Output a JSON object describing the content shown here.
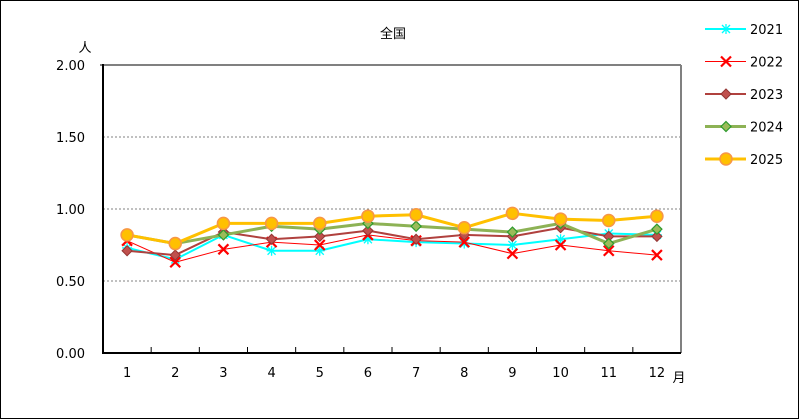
{
  "chart_data": {
    "type": "line",
    "title": "全国",
    "xlabel": "月",
    "ylabel": "人",
    "categories": [
      "1",
      "2",
      "3",
      "4",
      "5",
      "6",
      "7",
      "8",
      "9",
      "10",
      "11",
      "12"
    ],
    "yticks": [
      "0.00",
      "0.50",
      "1.00",
      "1.50",
      "2.00"
    ],
    "ylim": [
      0,
      2.0
    ],
    "grid": "horizontal dashed at 0.50, 1.00, 1.50",
    "legend_position": "right",
    "series": [
      {
        "name": "2021",
        "color": "#00FFFF",
        "marker": "asterisk",
        "width": 2,
        "values": [
          0.73,
          0.65,
          0.82,
          0.71,
          0.71,
          0.79,
          0.77,
          0.76,
          0.75,
          0.79,
          0.83,
          0.82
        ]
      },
      {
        "name": "2022",
        "color": "#FF0000",
        "marker": "x",
        "width": 1,
        "values": [
          0.78,
          0.63,
          0.72,
          0.77,
          0.75,
          0.82,
          0.78,
          0.77,
          0.69,
          0.75,
          0.71,
          0.68
        ]
      },
      {
        "name": "2023",
        "color": "#B0413E",
        "marker": "diamond",
        "width": 2,
        "values": [
          0.71,
          0.68,
          0.84,
          0.79,
          0.81,
          0.85,
          0.79,
          0.82,
          0.81,
          0.87,
          0.81,
          0.81
        ]
      },
      {
        "name": "2024",
        "color": "#8DB255",
        "marker": "diamond-green",
        "width": 3,
        "values": [
          0.82,
          0.76,
          0.82,
          0.88,
          0.86,
          0.9,
          0.88,
          0.86,
          0.84,
          0.9,
          0.76,
          0.86
        ]
      },
      {
        "name": "2025",
        "color": "#FFC000",
        "marker": "circle",
        "width": 3,
        "values": [
          0.82,
          0.76,
          0.9,
          0.9,
          0.9,
          0.95,
          0.96,
          0.87,
          0.97,
          0.93,
          0.92,
          0.95
        ]
      }
    ]
  }
}
